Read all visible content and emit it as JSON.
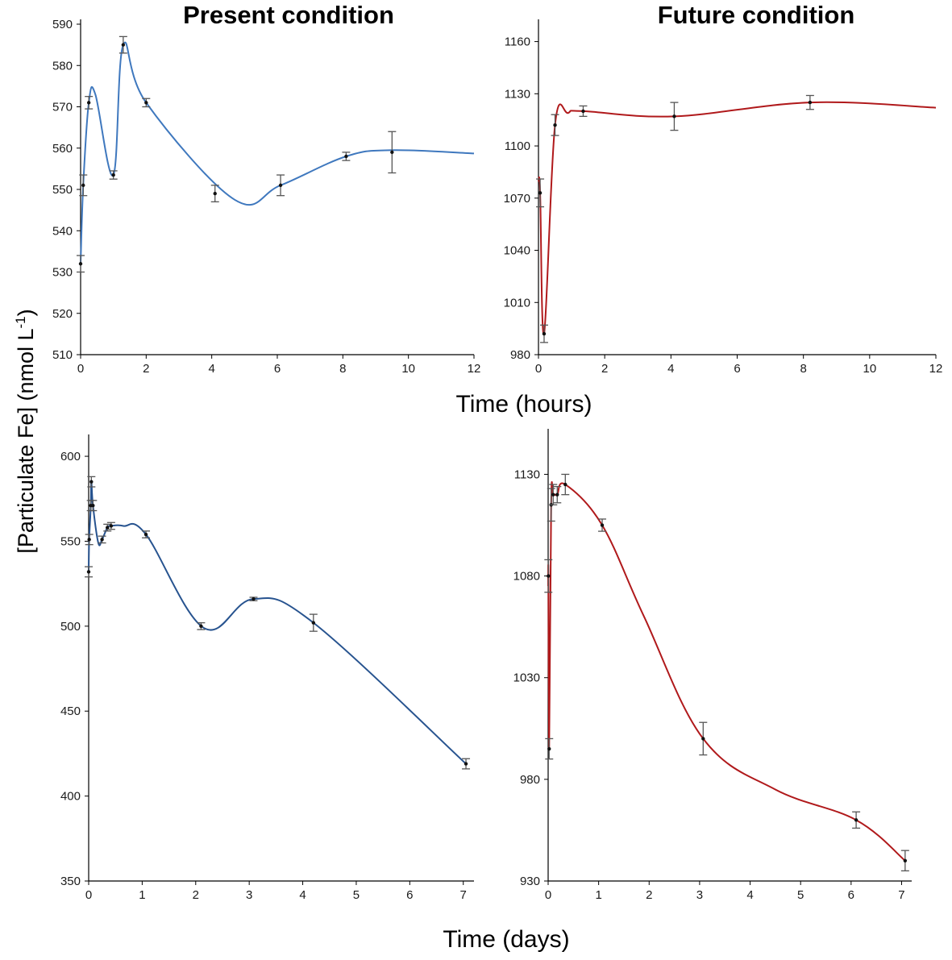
{
  "figure": {
    "ylabel": "[Particulate Fe] (nmol L",
    "ylabel_sup": "-1",
    "ylabel_end": ")",
    "xlabel_top": "Time (hours)",
    "xlabel_bottom": "Time (days)"
  },
  "colors": {
    "present": "#3f78be",
    "present_days": "#27538f",
    "future": "#b0191b",
    "axis": "#000000",
    "errorbar": "#555555"
  },
  "chart_data": [
    {
      "type": "line",
      "id": "present-hours",
      "title": "Present condition",
      "xlabel": "Time (hours)",
      "xlim": [
        0,
        12
      ],
      "ylim": [
        510,
        590
      ],
      "xticks": [
        0,
        2,
        4,
        6,
        8,
        10,
        12
      ],
      "yticks": [
        510,
        520,
        530,
        540,
        550,
        560,
        570,
        580,
        590
      ],
      "series": [
        {
          "name": "Present condition",
          "x": [
            0,
            0.08,
            0.25,
            1.0,
            1.3,
            2.0,
            4.1,
            6.1,
            8.1,
            9.5
          ],
          "y": [
            532,
            551,
            571,
            553.5,
            585,
            571,
            549,
            551,
            558,
            559
          ],
          "err": [
            2,
            2.5,
            1.5,
            1,
            2,
            1,
            2,
            2.5,
            1,
            5
          ]
        }
      ],
      "curve": {
        "x": [
          0,
          0.08,
          0.25,
          0.45,
          1.0,
          1.3,
          2.0,
          4.7,
          6.1,
          8.1,
          9.5,
          12
        ],
        "y": [
          532,
          551,
          571,
          573,
          553.5,
          585,
          571,
          547.5,
          551,
          558,
          559.5,
          558.7
        ]
      }
    },
    {
      "type": "line",
      "id": "future-hours",
      "title": "Future condition",
      "xlabel": "Time (hours)",
      "xlim": [
        0,
        12
      ],
      "ylim": [
        980,
        1170
      ],
      "xticks": [
        0,
        2,
        4,
        6,
        8,
        10,
        12
      ],
      "yticks": [
        980,
        1010,
        1040,
        1070,
        1100,
        1130,
        1160
      ],
      "series": [
        {
          "name": "Future condition",
          "x": [
            0.05,
            0.17,
            0.5,
            1.35,
            4.1,
            8.2
          ],
          "y": [
            1073,
            992,
            1112,
            1120,
            1117,
            1125
          ],
          "err": [
            8,
            5,
            6,
            3,
            8,
            4
          ]
        }
      ],
      "curve": {
        "x": [
          0,
          0.05,
          0.17,
          0.5,
          0.9,
          1.35,
          4.1,
          8.2,
          12
        ],
        "y": [
          1080,
          1073,
          992,
          1112,
          1119,
          1120,
          1117,
          1125,
          1122
        ]
      }
    },
    {
      "type": "line",
      "id": "present-days",
      "title": "",
      "xlabel": "Time (days)",
      "xlim": [
        0,
        7.2
      ],
      "ylim": [
        350,
        610
      ],
      "xticks": [
        0,
        1,
        2,
        3,
        4,
        5,
        6,
        7
      ],
      "yticks": [
        350,
        400,
        450,
        500,
        550,
        600
      ],
      "series": [
        {
          "name": "Present condition",
          "x": [
            0,
            0.01,
            0.04,
            0.05,
            0.08,
            0.25,
            0.35,
            0.42,
            1.07,
            2.1,
            3.08,
            4.2,
            7.05
          ],
          "y": [
            532,
            551,
            571,
            585,
            571,
            551,
            558,
            559,
            554,
            500,
            516,
            502,
            419
          ],
          "err": [
            3,
            3,
            3,
            3,
            3,
            2,
            2,
            2,
            2,
            2,
            1,
            5,
            3
          ]
        }
      ],
      "curve": {
        "x": [
          0,
          0.01,
          0.04,
          0.05,
          0.08,
          0.18,
          0.25,
          0.35,
          0.42,
          0.65,
          1.07,
          2.15,
          3.08,
          4.2,
          7.05
        ],
        "y": [
          532,
          551,
          571,
          585,
          571,
          549,
          551,
          558,
          559,
          559,
          554,
          499,
          516,
          502,
          419
        ]
      }
    },
    {
      "type": "line",
      "id": "future-days",
      "title": "",
      "xlabel": "Time (days)",
      "xlim": [
        0,
        7.2
      ],
      "ylim": [
        930,
        1150
      ],
      "xticks": [
        0,
        1,
        2,
        3,
        4,
        5,
        6,
        7
      ],
      "yticks": [
        930,
        980,
        1030,
        1080,
        1130
      ],
      "series": [
        {
          "name": "Future condition",
          "x": [
            0.005,
            0.02,
            0.06,
            0.1,
            0.18,
            0.34,
            1.07,
            3.07,
            6.1,
            7.07
          ],
          "y": [
            1080,
            995,
            1115,
            1120,
            1120,
            1125,
            1105,
            1000,
            960,
            940
          ],
          "err": [
            8,
            5,
            8,
            5,
            4,
            5,
            3,
            8,
            4,
            5
          ]
        }
      ],
      "curve": {
        "x": [
          0,
          0.005,
          0.02,
          0.06,
          0.1,
          0.18,
          0.34,
          1.07,
          1.9,
          3.07,
          4.5,
          6.1,
          7.07
        ],
        "y": [
          1075,
          1080,
          995,
          1115,
          1120,
          1120,
          1125,
          1105,
          1060,
          1000,
          975,
          960,
          940
        ]
      }
    }
  ]
}
